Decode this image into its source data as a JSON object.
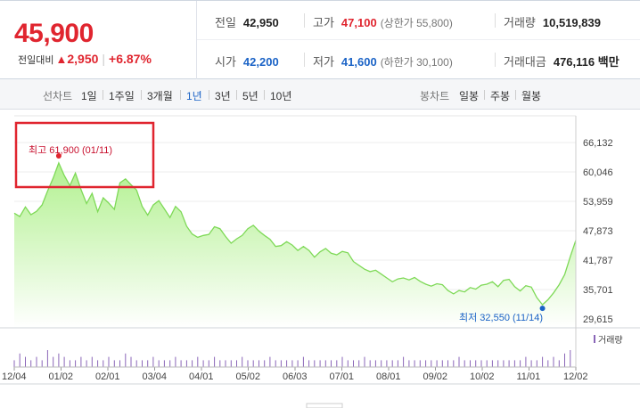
{
  "quote": {
    "price": "45,900",
    "change_label": "전일대비",
    "change_symbol": "▲",
    "change_value": "2,950",
    "change_rate": "+6.87%",
    "prev_close": {
      "label": "전일",
      "value": "42,950"
    },
    "high": {
      "label": "고가",
      "value": "47,100",
      "sub": "(상한가 55,800)"
    },
    "volume": {
      "label": "거래량",
      "value": "10,519,839"
    },
    "open": {
      "label": "시가",
      "value": "42,200"
    },
    "low": {
      "label": "저가",
      "value": "41,600",
      "sub": "(하한가 30,100)"
    },
    "amount": {
      "label": "거래대금",
      "value": "476,116 백만"
    }
  },
  "tabs": {
    "line_label": "선차트",
    "line_periods": [
      "1일",
      "1주일",
      "3개월",
      "1년",
      "3년",
      "5년",
      "10년"
    ],
    "active_period": "1년",
    "candle_label": "봉차트",
    "candle_periods": [
      "일봉",
      "주봉",
      "월봉"
    ]
  },
  "colors": {
    "up": "#e0252f",
    "down": "#1b63c6",
    "line": "#7ed957",
    "fill_top": "#aef08a"
  },
  "chart_data": {
    "type": "area",
    "y_ticks": [
      "66,132",
      "60,046",
      "53,959",
      "47,873",
      "41,787",
      "35,701",
      "29,615"
    ],
    "ylim": [
      29615,
      66132
    ],
    "x_ticks": [
      "12/04",
      "01/02",
      "02/01",
      "03/04",
      "04/01",
      "05/02",
      "06/03",
      "07/01",
      "08/01",
      "09/02",
      "10/02",
      "11/01",
      "12/02"
    ],
    "high_annotation": "최고 61,900 (01/11)",
    "low_annotation": "최저 32,550 (11/14)",
    "volume_label": "거래량",
    "values": [
      51500,
      50800,
      52800,
      51200,
      51900,
      53200,
      56100,
      58800,
      61900,
      59300,
      57200,
      59800,
      56400,
      53500,
      55600,
      51800,
      54700,
      53600,
      52300,
      57800,
      58600,
      57400,
      56300,
      52900,
      51100,
      53200,
      54100,
      52400,
      50600,
      52900,
      51800,
      48800,
      47200,
      46500,
      46900,
      47100,
      48700,
      48300,
      46700,
      45300,
      46200,
      46900,
      48300,
      49000,
      47800,
      46900,
      46100,
      44600,
      44800,
      45600,
      44900,
      43800,
      44600,
      43800,
      42400,
      43500,
      44200,
      43200,
      42900,
      43600,
      43300,
      41500,
      40700,
      39900,
      39400,
      39700,
      38900,
      38100,
      37300,
      37900,
      38100,
      37700,
      38200,
      37400,
      36800,
      36400,
      36900,
      36700,
      35500,
      34800,
      35500,
      35200,
      36100,
      35800,
      36600,
      36800,
      37300,
      36300,
      37600,
      37800,
      36300,
      35400,
      36500,
      36200,
      34000,
      32550,
      33600,
      35000,
      36700,
      38800,
      42500,
      45900
    ],
    "volumes": [
      2,
      4,
      3,
      2,
      3,
      2,
      5,
      3,
      4,
      3,
      2,
      2,
      3,
      2,
      3,
      2,
      2,
      3,
      2,
      2,
      4,
      3,
      2,
      2,
      2,
      3,
      2,
      2,
      2,
      3,
      2,
      2,
      2,
      3,
      2,
      2,
      3,
      2,
      2,
      2,
      2,
      3,
      2,
      2,
      2,
      2,
      3,
      2,
      2,
      2,
      2,
      2,
      3,
      2,
      2,
      2,
      2,
      2,
      2,
      3,
      2,
      2,
      2,
      3,
      2,
      2,
      2,
      2,
      2,
      2,
      3,
      2,
      2,
      2,
      2,
      2,
      2,
      2,
      2,
      2,
      3,
      2,
      2,
      2,
      2,
      2,
      2,
      2,
      2,
      2,
      2,
      2,
      3,
      2,
      2,
      3,
      2,
      3,
      2,
      4,
      5,
      10
    ]
  }
}
